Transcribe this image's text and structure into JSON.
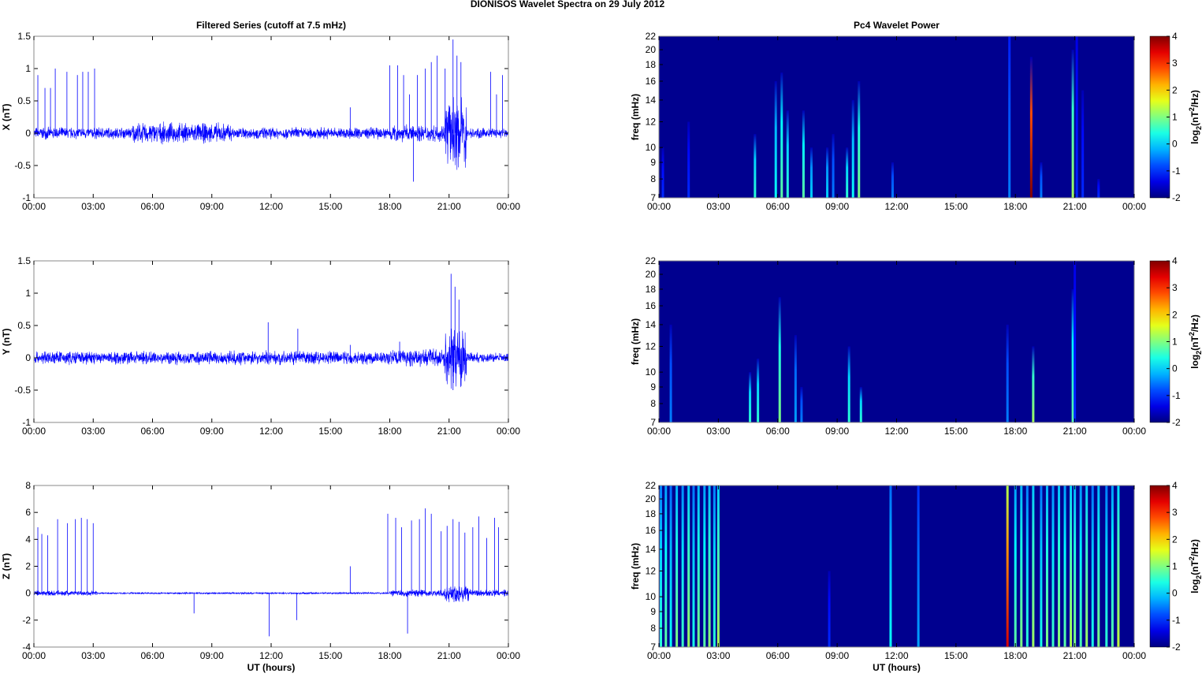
{
  "chart_data": [
    {
      "type": "line",
      "title": "Filtered Series (cutoff at 7.5 mHz)",
      "ylabel": "X (nT)",
      "xlabel": "",
      "ylim": [
        -1,
        1.5
      ],
      "yticks": [
        -1,
        -0.5,
        0,
        0.5,
        1,
        1.5
      ],
      "yticklabels": [
        "-1",
        "-0.5",
        "0",
        "0.5",
        "1",
        "1.5"
      ],
      "noise": [
        [
          0,
          5,
          0.07
        ],
        [
          5,
          10,
          0.12
        ],
        [
          10,
          18,
          0.07
        ],
        [
          18,
          20.8,
          0.1
        ],
        [
          20.8,
          21.9,
          0.4
        ],
        [
          21.9,
          24,
          0.06
        ]
      ],
      "spikes": [
        [
          0.2,
          0.9
        ],
        [
          0.56,
          0.7
        ],
        [
          0.84,
          0.7
        ],
        [
          1.08,
          1.0
        ],
        [
          1.67,
          0.95
        ],
        [
          2.2,
          0.9
        ],
        [
          2.47,
          0.95
        ],
        [
          2.75,
          0.95
        ],
        [
          3.07,
          1.0
        ],
        [
          16.0,
          0.4
        ],
        [
          18.0,
          1.05
        ],
        [
          18.4,
          1.05
        ],
        [
          18.7,
          0.9
        ],
        [
          19.0,
          0.6
        ],
        [
          19.2,
          -0.75
        ],
        [
          19.4,
          0.9
        ],
        [
          19.8,
          1.0
        ],
        [
          20.1,
          1.1
        ],
        [
          20.4,
          1.2
        ],
        [
          20.8,
          1.0
        ],
        [
          21.2,
          1.45
        ],
        [
          21.4,
          1.2
        ],
        [
          21.6,
          1.1
        ],
        [
          23.1,
          0.95
        ],
        [
          23.4,
          0.6
        ],
        [
          23.7,
          0.9
        ]
      ]
    },
    {
      "type": "line",
      "title": "",
      "ylabel": "Y (nT)",
      "xlabel": "",
      "ylim": [
        -1,
        1.5
      ],
      "yticks": [
        -1,
        -0.5,
        0,
        0.5,
        1,
        1.5
      ],
      "yticklabels": [
        "-1",
        "-0.5",
        "0",
        "0.5",
        "1",
        "1.5"
      ],
      "noise": [
        [
          0,
          18,
          0.08
        ],
        [
          18,
          20.8,
          0.1
        ],
        [
          20.8,
          21.9,
          0.35
        ],
        [
          21.9,
          24,
          0.06
        ]
      ],
      "spikes": [
        [
          11.85,
          0.55
        ],
        [
          13.35,
          0.45
        ],
        [
          16.0,
          0.2
        ],
        [
          18.5,
          0.25
        ],
        [
          21.1,
          1.3
        ],
        [
          21.3,
          1.1
        ],
        [
          21.5,
          0.9
        ],
        [
          21.2,
          -0.5
        ]
      ]
    },
    {
      "type": "line",
      "title": "",
      "ylabel": "Z (nT)",
      "xlabel": "UT (hours)",
      "ylim": [
        -4,
        8
      ],
      "yticks": [
        -4,
        -2,
        0,
        2,
        4,
        6,
        8
      ],
      "yticklabels": [
        "-4",
        "-2",
        "0",
        "2",
        "4",
        "6",
        "8"
      ],
      "noise": [
        [
          0,
          3.2,
          0.15
        ],
        [
          3.2,
          18,
          0.05
        ],
        [
          18,
          20.8,
          0.2
        ],
        [
          20.8,
          22,
          0.5
        ],
        [
          22,
          24,
          0.2
        ]
      ],
      "spikes": [
        [
          0.2,
          4.9
        ],
        [
          0.4,
          4.4
        ],
        [
          0.7,
          4.3
        ],
        [
          1.2,
          5.5
        ],
        [
          1.7,
          5.2
        ],
        [
          2.1,
          5.5
        ],
        [
          2.4,
          5.6
        ],
        [
          2.7,
          5.5
        ],
        [
          3.0,
          5.2
        ],
        [
          8.1,
          -1.5
        ],
        [
          11.9,
          -3.2
        ],
        [
          13.3,
          -2.0
        ],
        [
          16.0,
          2.0
        ],
        [
          17.9,
          5.9
        ],
        [
          18.3,
          5.6
        ],
        [
          18.6,
          4.9
        ],
        [
          18.9,
          -3.0
        ],
        [
          19.1,
          5.4
        ],
        [
          19.5,
          5.5
        ],
        [
          19.8,
          6.3
        ],
        [
          20.1,
          5.9
        ],
        [
          20.6,
          4.6
        ],
        [
          20.9,
          5.0
        ],
        [
          21.2,
          5.5
        ],
        [
          21.5,
          5.3
        ],
        [
          21.8,
          4.5
        ],
        [
          22.2,
          4.9
        ],
        [
          22.5,
          5.7
        ],
        [
          22.9,
          4.1
        ],
        [
          23.3,
          5.6
        ],
        [
          23.5,
          4.9
        ]
      ]
    },
    {
      "type": "heatmap",
      "title": "Pc4 Wavelet Power",
      "ylabel": "freq (mHz)",
      "xlabel": "",
      "ylim": [
        7,
        22
      ],
      "clim": [
        -2,
        4
      ],
      "colorbar_label": "log2(nT^2/Hz)",
      "bursts": [
        [
          0.2,
          10,
          -1
        ],
        [
          1.5,
          12,
          -1
        ],
        [
          4.85,
          11,
          0.5
        ],
        [
          5.9,
          16,
          0.3
        ],
        [
          6.2,
          17,
          0.8
        ],
        [
          6.5,
          13,
          0.5
        ],
        [
          7.3,
          13,
          0.8
        ],
        [
          7.7,
          10,
          0
        ],
        [
          8.5,
          10,
          0
        ],
        [
          8.8,
          11,
          -0.5
        ],
        [
          9.5,
          10,
          0.5
        ],
        [
          9.8,
          14,
          0.3
        ],
        [
          10.1,
          16,
          1
        ],
        [
          11.8,
          9,
          -0.5
        ],
        [
          17.7,
          22,
          -0.5
        ],
        [
          18.8,
          19,
          4
        ],
        [
          19.3,
          9,
          -0.5
        ],
        [
          20.9,
          20,
          1.2
        ],
        [
          21.1,
          22,
          -1
        ],
        [
          21.4,
          15,
          -1
        ],
        [
          22.2,
          8,
          -1
        ]
      ]
    },
    {
      "type": "heatmap",
      "title": "",
      "ylabel": "freq (mHz)",
      "xlabel": "",
      "ylim": [
        7,
        22
      ],
      "clim": [
        -2,
        4
      ],
      "colorbar_label": "log2(nT^2/Hz)",
      "bursts": [
        [
          0.6,
          14,
          -0.5
        ],
        [
          4.6,
          10,
          0.5
        ],
        [
          5.0,
          11,
          0.5
        ],
        [
          6.1,
          17,
          1
        ],
        [
          6.9,
          13,
          -0.3
        ],
        [
          7.2,
          9,
          -0.5
        ],
        [
          9.6,
          12,
          0.5
        ],
        [
          10.2,
          9,
          0.5
        ],
        [
          17.6,
          14,
          -0.5
        ],
        [
          18.9,
          12,
          1.2
        ],
        [
          20.9,
          18,
          0.8
        ],
        [
          21.0,
          22,
          -1
        ]
      ]
    },
    {
      "type": "heatmap",
      "title": "",
      "ylabel": "freq (mHz)",
      "xlabel": "UT (hours)",
      "ylim": [
        7,
        22
      ],
      "clim": [
        -2,
        4
      ],
      "colorbar_label": "log2(nT^2/Hz)",
      "bursts": [
        [
          0.1,
          22,
          0.5
        ],
        [
          0.35,
          22,
          0.8
        ],
        [
          0.6,
          22,
          0.3
        ],
        [
          0.9,
          22,
          1
        ],
        [
          1.2,
          22,
          0.6
        ],
        [
          1.5,
          22,
          1.2
        ],
        [
          1.75,
          22,
          0.4
        ],
        [
          2.0,
          22,
          1
        ],
        [
          2.3,
          22,
          0.8
        ],
        [
          2.55,
          22,
          1.1
        ],
        [
          2.8,
          22,
          0.5
        ],
        [
          3.0,
          22,
          1.3
        ],
        [
          8.6,
          12,
          -1
        ],
        [
          11.7,
          22,
          0.3
        ],
        [
          13.1,
          22,
          -0.3
        ],
        [
          17.6,
          22,
          3.5
        ],
        [
          18.0,
          22,
          0.8
        ],
        [
          18.3,
          22,
          1
        ],
        [
          18.6,
          22,
          0.5
        ],
        [
          18.9,
          22,
          1.2
        ],
        [
          19.3,
          22,
          0.4
        ],
        [
          19.6,
          22,
          1
        ],
        [
          19.9,
          22,
          0.6
        ],
        [
          20.2,
          22,
          1.1
        ],
        [
          20.5,
          22,
          0.8
        ],
        [
          20.8,
          22,
          1.3
        ],
        [
          21.0,
          22,
          1
        ],
        [
          21.3,
          22,
          0.7
        ],
        [
          21.6,
          22,
          1.2
        ],
        [
          21.9,
          22,
          0.4
        ],
        [
          22.2,
          22,
          1
        ],
        [
          22.6,
          22,
          0.5
        ],
        [
          22.9,
          22,
          0.8
        ],
        [
          23.2,
          22,
          1.4
        ]
      ]
    }
  ],
  "suptitle": "DIONISOS Wavelet Spectra on 29 July      2012",
  "xticks": [
    0,
    3,
    6,
    9,
    12,
    15,
    18,
    21,
    24
  ],
  "xticklabels": [
    "00:00",
    "03:00",
    "06:00",
    "09:00",
    "12:00",
    "15:00",
    "18:00",
    "21:00",
    "00:00"
  ],
  "fticks": [
    7,
    8,
    9,
    10,
    12,
    14,
    16,
    18,
    20,
    22
  ],
  "fticklabels": [
    "7",
    "8",
    "9",
    "10",
    "12",
    "14",
    "16",
    "18",
    "20",
    "22"
  ],
  "cticks": [
    -2,
    -1,
    0,
    1,
    2,
    3,
    4
  ],
  "cticklabels": [
    "-2",
    "-1",
    "0",
    "1",
    "2",
    "3",
    "4"
  ],
  "colors": {
    "line": "#0000ff",
    "bg": "#00008f"
  }
}
